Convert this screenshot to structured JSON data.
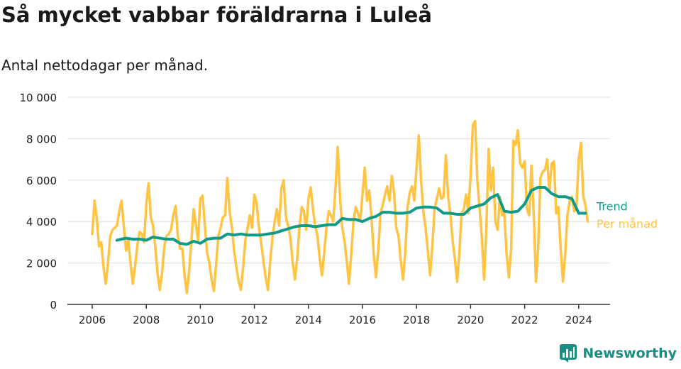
{
  "title": "Så mycket vabbar föräldrarna i Luleå",
  "subtitle": "Antal nettodagar per månad.",
  "brand": {
    "name": "Newsworthy",
    "icon": "bar-chart-logo-icon"
  },
  "colors": {
    "monthly": "#ffc444",
    "trend": "#119a88",
    "brand": "#178f83",
    "grid": "#dddddd",
    "axis": "#333333"
  },
  "chart_data": {
    "type": "line",
    "xlabel": "",
    "ylabel": "",
    "xlim": [
      2006,
      2024.6
    ],
    "ylim": [
      0,
      10000
    ],
    "y_ticks": [
      0,
      2000,
      4000,
      6000,
      8000,
      10000
    ],
    "y_tick_labels": [
      "0",
      "2 000",
      "4 000",
      "6 000",
      "8 000",
      "10 000"
    ],
    "x_ticks": [
      2006,
      2008,
      2010,
      2012,
      2014,
      2016,
      2018,
      2020,
      2022,
      2024
    ],
    "x_tick_labels": [
      "2006",
      "2008",
      "2010",
      "2012",
      "2014",
      "2016",
      "2018",
      "2020",
      "2022",
      "2024"
    ],
    "grid": "horizontal",
    "legend": "inline labels at line ends (right)",
    "series": [
      {
        "name": "Per månad",
        "color": "#ffc444",
        "x": [
          2006.0,
          2006.083,
          2006.167,
          2006.25,
          2006.333,
          2006.417,
          2006.5,
          2006.583,
          2006.667,
          2006.75,
          2006.833,
          2006.917,
          2007.0,
          2007.083,
          2007.167,
          2007.25,
          2007.333,
          2007.417,
          2007.5,
          2007.583,
          2007.667,
          2007.75,
          2007.833,
          2007.917,
          2008.0,
          2008.083,
          2008.167,
          2008.25,
          2008.333,
          2008.417,
          2008.5,
          2008.583,
          2008.667,
          2008.75,
          2008.833,
          2008.917,
          2009.0,
          2009.083,
          2009.167,
          2009.25,
          2009.333,
          2009.417,
          2009.5,
          2009.583,
          2009.667,
          2009.75,
          2009.833,
          2009.917,
          2010.0,
          2010.083,
          2010.167,
          2010.25,
          2010.333,
          2010.417,
          2010.5,
          2010.583,
          2010.667,
          2010.75,
          2010.833,
          2010.917,
          2011.0,
          2011.083,
          2011.167,
          2011.25,
          2011.333,
          2011.417,
          2011.5,
          2011.583,
          2011.667,
          2011.75,
          2011.833,
          2011.917,
          2012.0,
          2012.083,
          2012.167,
          2012.25,
          2012.333,
          2012.417,
          2012.5,
          2012.583,
          2012.667,
          2012.75,
          2012.833,
          2012.917,
          2013.0,
          2013.083,
          2013.167,
          2013.25,
          2013.333,
          2013.417,
          2013.5,
          2013.583,
          2013.667,
          2013.75,
          2013.833,
          2013.917,
          2014.0,
          2014.083,
          2014.167,
          2014.25,
          2014.333,
          2014.417,
          2014.5,
          2014.583,
          2014.667,
          2014.75,
          2014.833,
          2014.917,
          2015.0,
          2015.083,
          2015.167,
          2015.25,
          2015.333,
          2015.417,
          2015.5,
          2015.583,
          2015.667,
          2015.75,
          2015.833,
          2015.917,
          2016.0,
          2016.083,
          2016.167,
          2016.25,
          2016.333,
          2016.417,
          2016.5,
          2016.583,
          2016.667,
          2016.75,
          2016.833,
          2016.917,
          2017.0,
          2017.083,
          2017.167,
          2017.25,
          2017.333,
          2017.417,
          2017.5,
          2017.583,
          2017.667,
          2017.75,
          2017.833,
          2017.917,
          2018.0,
          2018.083,
          2018.167,
          2018.25,
          2018.333,
          2018.417,
          2018.5,
          2018.583,
          2018.667,
          2018.75,
          2018.833,
          2018.917,
          2019.0,
          2019.083,
          2019.167,
          2019.25,
          2019.333,
          2019.417,
          2019.5,
          2019.583,
          2019.667,
          2019.75,
          2019.833,
          2019.917,
          2020.0,
          2020.083,
          2020.167,
          2020.25,
          2020.333,
          2020.417,
          2020.5,
          2020.583,
          2020.667,
          2020.75,
          2020.833,
          2020.917,
          2021.0,
          2021.083,
          2021.167,
          2021.25,
          2021.333,
          2021.417,
          2021.5,
          2021.583,
          2021.667,
          2021.75,
          2021.833,
          2021.917,
          2022.0,
          2022.083,
          2022.167,
          2022.25,
          2022.333,
          2022.417,
          2022.5,
          2022.583,
          2022.667,
          2022.75,
          2022.833,
          2022.917,
          2023.0,
          2023.083,
          2023.167,
          2023.25,
          2023.333,
          2023.417,
          2023.5,
          2023.583,
          2023.667,
          2023.75,
          2023.833,
          2023.917,
          2024.0,
          2024.083,
          2024.167,
          2024.25,
          2024.333
        ],
        "values": [
          3400,
          5000,
          4200,
          2800,
          3000,
          1800,
          1000,
          2000,
          3300,
          3600,
          3700,
          3800,
          4500,
          5000,
          3800,
          2600,
          3100,
          2000,
          1000,
          1800,
          2800,
          3500,
          3400,
          3000,
          4800,
          5850,
          4200,
          3800,
          2800,
          1500,
          700,
          1500,
          2800,
          3300,
          3400,
          3600,
          4300,
          4750,
          3300,
          2700,
          2700,
          1400,
          550,
          1600,
          3000,
          4600,
          3900,
          3100,
          5100,
          5250,
          3800,
          2500,
          2000,
          1200,
          650,
          1900,
          3300,
          3700,
          4200,
          4300,
          6100,
          4500,
          3700,
          2600,
          1800,
          1100,
          700,
          1800,
          3100,
          3700,
          4300,
          3700,
          5300,
          4900,
          3700,
          3000,
          2100,
          1300,
          700,
          2000,
          3200,
          4000,
          4600,
          3800,
          5600,
          6000,
          4200,
          3800,
          3200,
          2000,
          1200,
          2200,
          3700,
          4700,
          4500,
          3600,
          5100,
          5650,
          4600,
          3800,
          3300,
          2200,
          1400,
          2500,
          3700,
          4500,
          4300,
          4000,
          5600,
          7600,
          5200,
          3700,
          3100,
          2100,
          1000,
          2400,
          4000,
          4700,
          4400,
          4000,
          5300,
          6600,
          5000,
          5500,
          4200,
          2400,
          1300,
          2600,
          4400,
          4800,
          5300,
          5700,
          5000,
          6200,
          5400,
          3700,
          3300,
          2100,
          1200,
          2500,
          4700,
          5400,
          5700,
          5000,
          6600,
          8150,
          6000,
          4500,
          3700,
          2600,
          1400,
          2800,
          4600,
          5100,
          5600,
          5100,
          5200,
          7200,
          5200,
          4400,
          3100,
          2200,
          1100,
          2500,
          4400,
          4600,
          5300,
          4400,
          6200,
          8650,
          8850,
          6000,
          4600,
          3200,
          1200,
          3700,
          7500,
          5500,
          6600,
          4000,
          3600,
          5200,
          4300,
          4400,
          2400,
          1300,
          2700,
          7900,
          7700,
          8400,
          6800,
          6600,
          6900,
          4600,
          4300,
          6700,
          4500,
          1100,
          2700,
          6100,
          6400,
          6500,
          7000,
          5500,
          6800,
          6900,
          4400,
          4700,
          2700,
          1100,
          2400,
          4300,
          5000,
          5200,
          4500,
          4700,
          7000,
          7800,
          5200,
          4800,
          4000
        ]
      },
      {
        "name": "Trend",
        "color": "#119a88",
        "x": [
          2006.917,
          2007.25,
          2007.5,
          2007.75,
          2008.0,
          2008.25,
          2008.5,
          2008.75,
          2009.0,
          2009.25,
          2009.5,
          2009.75,
          2010.0,
          2010.25,
          2010.5,
          2010.75,
          2011.0,
          2011.25,
          2011.5,
          2011.75,
          2012.0,
          2012.25,
          2012.5,
          2012.75,
          2013.0,
          2013.25,
          2013.5,
          2013.75,
          2014.0,
          2014.25,
          2014.5,
          2014.75,
          2015.0,
          2015.25,
          2015.5,
          2015.75,
          2016.0,
          2016.25,
          2016.5,
          2016.75,
          2017.0,
          2017.25,
          2017.5,
          2017.75,
          2018.0,
          2018.25,
          2018.5,
          2018.75,
          2019.0,
          2019.25,
          2019.5,
          2019.75,
          2020.0,
          2020.25,
          2020.5,
          2020.75,
          2021.0,
          2021.25,
          2021.5,
          2021.75,
          2022.0,
          2022.25,
          2022.5,
          2022.75,
          2023.0,
          2023.25,
          2023.5,
          2023.75,
          2024.0,
          2024.25
        ],
        "values": [
          3100,
          3200,
          3150,
          3150,
          3100,
          3250,
          3200,
          3150,
          3150,
          2950,
          2900,
          3050,
          2950,
          3150,
          3200,
          3200,
          3400,
          3350,
          3400,
          3350,
          3350,
          3350,
          3400,
          3450,
          3550,
          3650,
          3750,
          3800,
          3800,
          3750,
          3800,
          3850,
          3850,
          4150,
          4100,
          4100,
          4000,
          4150,
          4250,
          4450,
          4450,
          4400,
          4400,
          4450,
          4650,
          4700,
          4700,
          4650,
          4400,
          4400,
          4350,
          4350,
          4650,
          4750,
          4850,
          5150,
          5300,
          4500,
          4450,
          4500,
          4850,
          5500,
          5650,
          5650,
          5350,
          5200,
          5200,
          5100,
          4400,
          4400
        ]
      }
    ]
  }
}
